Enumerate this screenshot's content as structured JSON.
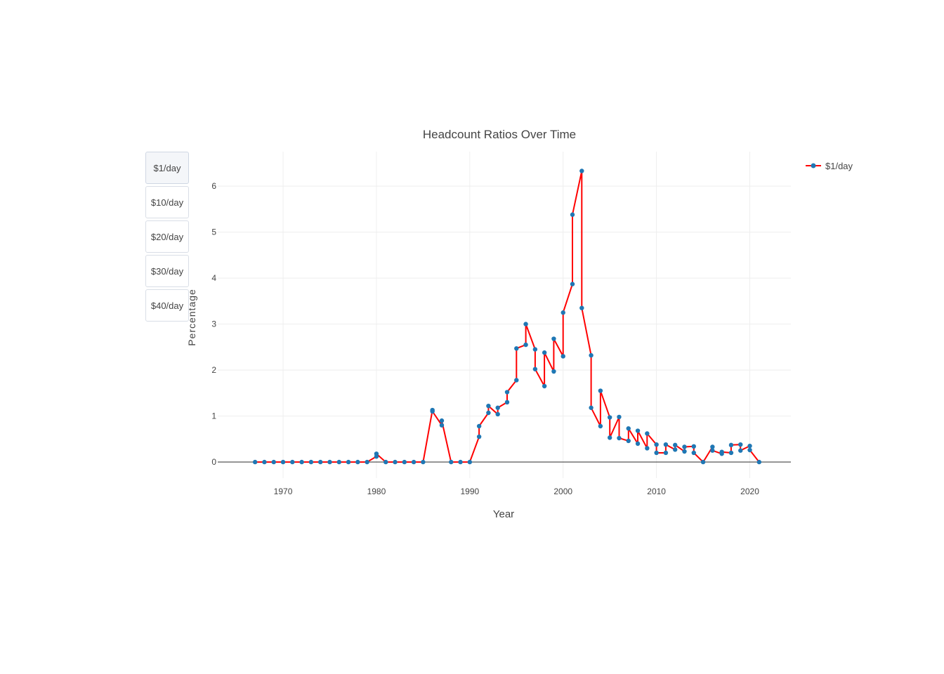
{
  "buttons": [
    {
      "label": "$1/day",
      "active": true
    },
    {
      "label": "$10/day",
      "active": false
    },
    {
      "label": "$20/day",
      "active": false
    },
    {
      "label": "$30/day",
      "active": false
    },
    {
      "label": "$40/day",
      "active": false
    }
  ],
  "colors": {
    "line": "#ff0000",
    "marker": "#1f77b4",
    "grid": "#eeeeee",
    "zeroline": "#444444",
    "text": "#444444"
  },
  "chart_data": {
    "type": "line",
    "title": "Headcount Ratios Over Time",
    "xlabel": "Year",
    "ylabel": "Percentage",
    "xlim": [
      1963,
      2024.4
    ],
    "ylim": [
      -0.35,
      6.75
    ],
    "xticks": [
      1970,
      1980,
      1990,
      2000,
      2010,
      2020
    ],
    "yticks": [
      0,
      1,
      2,
      3,
      4,
      5,
      6
    ],
    "grid": true,
    "legend_position": "top-right",
    "series": [
      {
        "name": "$1/day",
        "x": [
          1967,
          1968,
          1969,
          1970,
          1971,
          1972,
          1973,
          1974,
          1975,
          1976,
          1977,
          1978,
          1979,
          1980,
          1980,
          1981,
          1982,
          1983,
          1984,
          1985,
          1986,
          1986,
          1987,
          1987,
          1988,
          1989,
          1990,
          1991,
          1991,
          1992,
          1992,
          1993,
          1993,
          1994,
          1994,
          1995,
          1995,
          1996,
          1996,
          1997,
          1997,
          1998,
          1998,
          1999,
          1999,
          2000,
          2000,
          2001,
          2001,
          2002,
          2002,
          2003,
          2003,
          2004,
          2004,
          2005,
          2005,
          2006,
          2006,
          2007,
          2007,
          2008,
          2008,
          2009,
          2009,
          2010,
          2010,
          2011,
          2011,
          2012,
          2012,
          2013,
          2013,
          2014,
          2014,
          2015,
          2016,
          2016,
          2017,
          2017,
          2018,
          2018,
          2019,
          2019,
          2020,
          2020,
          2021
        ],
        "y": [
          0,
          0,
          0,
          0,
          0,
          0,
          0,
          0,
          0,
          0,
          0,
          0,
          0,
          0.12,
          0.18,
          0,
          0,
          0,
          0,
          0,
          1.13,
          1.1,
          0.8,
          0.9,
          0,
          0,
          0,
          0.55,
          0.78,
          1.07,
          1.22,
          1.04,
          1.18,
          1.3,
          1.52,
          1.78,
          2.47,
          2.55,
          3.0,
          2.45,
          2.02,
          1.65,
          2.38,
          1.97,
          2.68,
          2.3,
          3.25,
          3.87,
          5.38,
          6.33,
          3.35,
          2.32,
          1.18,
          0.78,
          1.55,
          0.97,
          0.53,
          0.98,
          0.52,
          0.46,
          0.73,
          0.4,
          0.68,
          0.3,
          0.62,
          0.38,
          0.2,
          0.2,
          0.38,
          0.27,
          0.37,
          0.23,
          0.33,
          0.34,
          0.2,
          0,
          0.33,
          0.25,
          0.18,
          0.22,
          0.2,
          0.37,
          0.38,
          0.25,
          0.35,
          0.26,
          0
        ]
      }
    ]
  }
}
